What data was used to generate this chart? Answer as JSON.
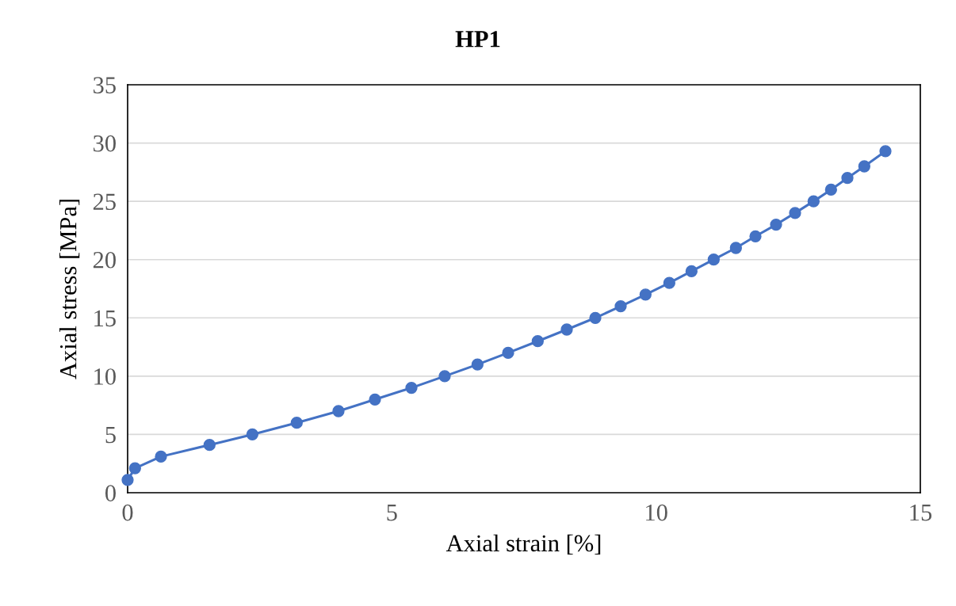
{
  "chart_data": {
    "type": "line",
    "title": "HP1",
    "xlabel": "Axial strain [%]",
    "ylabel": "Axial stress [MPa]",
    "x": [
      0,
      0.14,
      0.63,
      1.55,
      2.36,
      3.2,
      3.99,
      4.68,
      5.37,
      6.0,
      6.62,
      7.2,
      7.76,
      8.31,
      8.85,
      9.33,
      9.8,
      10.25,
      10.67,
      11.09,
      11.51,
      11.88,
      12.27,
      12.63,
      12.98,
      13.31,
      13.62,
      13.94,
      14.34
    ],
    "series": [
      {
        "color": "#4472c4",
        "values": [
          1.1,
          2.1,
          3.1,
          4.1,
          5,
          6,
          7,
          8,
          9,
          10,
          11,
          12,
          13,
          14,
          15,
          16,
          17,
          18,
          19,
          20,
          21,
          22,
          23,
          24,
          25,
          26,
          27,
          28,
          29.3
        ]
      }
    ],
    "xlim": [
      0,
      15
    ],
    "xticks": [
      0,
      5,
      10,
      15
    ],
    "ylim": [
      0,
      35
    ],
    "yticks": [
      0,
      5,
      10,
      15,
      20,
      25,
      30,
      35
    ],
    "grid": "y",
    "marker": "circle",
    "line_style": "solid"
  }
}
